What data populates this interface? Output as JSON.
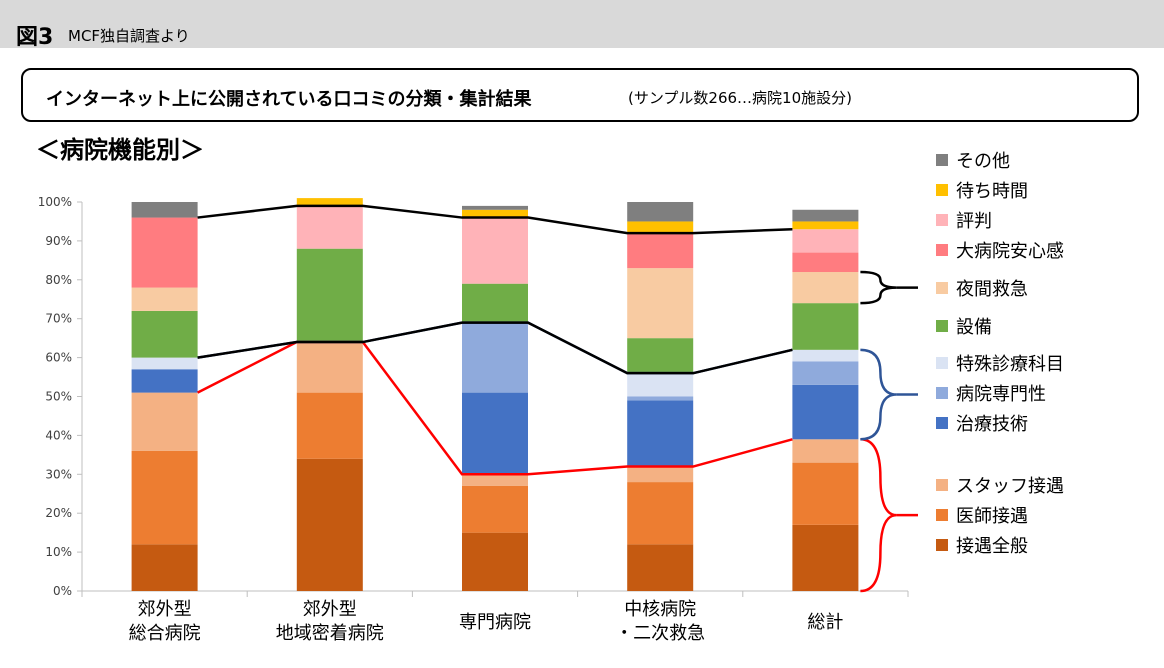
{
  "header": {
    "figure_label": "図3",
    "source": "MCF独自調査より"
  },
  "title": {
    "main": "インターネット上に公開されている口コミの分類・集計結果",
    "sub": "(サンプル数266…病院10施設分)"
  },
  "section_title": "＜病院機能別＞",
  "chart_data": {
    "type": "bar",
    "stacked": true,
    "categories": [
      [
        "郊外型",
        "総合病院"
      ],
      [
        "郊外型",
        "地域密着病院"
      ],
      [
        "専門病院"
      ],
      [
        "中核病院",
        "・二次救急"
      ],
      [
        "総計"
      ]
    ],
    "ylim": [
      0,
      100
    ],
    "yticks": [
      "0%",
      "10%",
      "20%",
      "30%",
      "40%",
      "50%",
      "60%",
      "70%",
      "80%",
      "90%",
      "100%"
    ],
    "grid": false,
    "legend_position": "right",
    "series": [
      {
        "name": "接遇全般",
        "color": "#c55a11",
        "values": [
          12,
          34,
          15,
          12,
          17
        ]
      },
      {
        "name": "医師接遇",
        "color": "#ed7d31",
        "values": [
          24,
          17,
          12,
          16,
          16
        ]
      },
      {
        "name": "スタッフ接遇",
        "color": "#f4b183",
        "values": [
          15,
          13,
          3,
          4,
          6
        ]
      },
      {
        "name": "治療技術",
        "color": "#4472c4",
        "values": [
          6,
          0,
          21,
          17,
          14
        ]
      },
      {
        "name": "病院専門性",
        "color": "#8faadc",
        "values": [
          0,
          0,
          18,
          1,
          6
        ]
      },
      {
        "name": "特殊診療科目",
        "color": "#dae3f3",
        "values": [
          3,
          0,
          0,
          6,
          3
        ]
      },
      {
        "name": "設備",
        "color": "#70ad47",
        "values": [
          12,
          24,
          10,
          9,
          12
        ]
      },
      {
        "name": "夜間救急",
        "color": "#f8cba2",
        "values": [
          6,
          0,
          0,
          18,
          8
        ]
      },
      {
        "name": "大病院安心感",
        "color": "#ff7c80",
        "values": [
          18,
          0,
          0,
          9,
          5
        ]
      },
      {
        "name": "評判",
        "color": "#ffb3b8",
        "values": [
          0,
          11,
          17,
          0,
          6
        ]
      },
      {
        "name": "待ち時間",
        "color": "#ffc000",
        "values": [
          0,
          2,
          2,
          3,
          2
        ]
      },
      {
        "name": "その他",
        "color": "#7f7f7f",
        "values": [
          4,
          0,
          1,
          5,
          3
        ]
      }
    ],
    "legend_order": [
      "その他",
      "待ち時間",
      "評判",
      "大病院安心感",
      "夜間救急",
      "設備",
      "特殊診療科目",
      "病院専門性",
      "治療技術",
      "スタッフ接遇",
      "医師接遇",
      "接遇全般"
    ],
    "group_lines": [
      {
        "color": "#ff0000",
        "after_series_index": 2
      },
      {
        "color": "#2f5597",
        "after_series_index": 5
      },
      {
        "color": "#000000",
        "after_series_index": 9,
        "from_series_index": 5
      }
    ]
  }
}
